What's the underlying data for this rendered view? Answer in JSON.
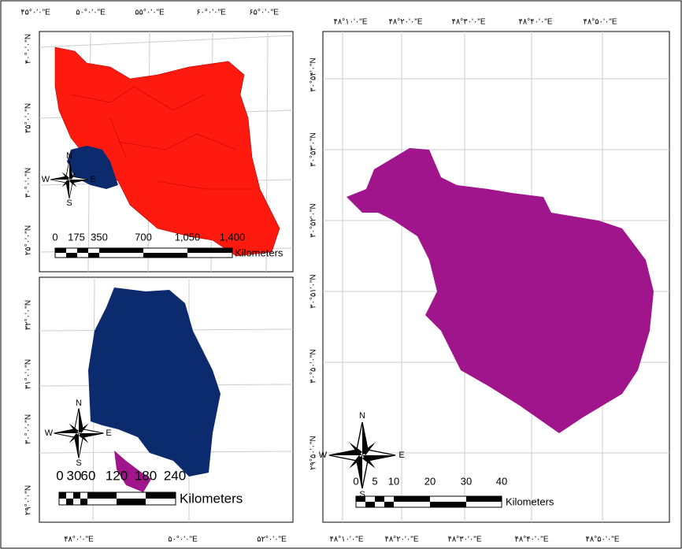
{
  "panels": {
    "iran": {
      "top_labels": [
        "۴۵°۰'۰\"E",
        "۵۰°۰'۰\"E",
        "۵۵°۰'۰\"E",
        "۶۰°۰'۰\"E",
        "۶۵°۰'۰\"E"
      ],
      "left_labels": [
        "۴۰°۰'۰\"N",
        "۳۵°۰'۰\"N",
        "۳۰°۰'۰\"N",
        "۲۵°۰'۰\"N"
      ],
      "scale": {
        "labels": [
          "0",
          "175",
          "350",
          "700",
          "1,050",
          "1,400"
        ],
        "unit": "Kilometers"
      },
      "compass": {
        "n": "N",
        "s": "S",
        "e": "E",
        "w": "W"
      }
    },
    "province": {
      "bottom_labels": [
        "۴۸°۰'۰\"E",
        "۵۰°۰'۰\"E",
        "۵۲°۰'۰\"E"
      ],
      "left_labels": [
        "۳۲°۰'۰\"N",
        "۳۱°۰'۰\"N",
        "۳۰°۰'۰\"N",
        "۲۹°۰'۰\"N"
      ],
      "scale": {
        "labels": [
          "0",
          "30",
          "60",
          "120",
          "180",
          "240"
        ],
        "unit": "Kilometers"
      },
      "compass": {
        "n": "N",
        "s": "S",
        "e": "E",
        "w": "W"
      }
    },
    "county": {
      "top_labels": [
        "۴۸°۱۰'۰\"E",
        "۴۸°۲۰'۰\"E",
        "۴۸°۳۰'۰\"E",
        "۴۸°۴۰'۰\"E",
        "۴۸°۵۰'۰\"E"
      ],
      "bottom_labels": [
        "۴۸°۱۰'۰\"E",
        "۴۸°۲۰'۰\"E",
        "۴۸°۳۰'۰\"E",
        "۴۸°۴۰'۰\"E",
        "۴۸°۵۰'۰\"E"
      ],
      "left_labels": [
        "۳۰°۵۴'۰\"N",
        "۳۰°۵۳'۰\"N",
        "۳۰°۵۲'۰\"N",
        "۳۰°۵۱'۰\"N",
        "۳۰°۵۰'۰\"N",
        "۲۹°۵۰'۰\"N"
      ],
      "scale": {
        "labels": [
          "0",
          "5",
          "10",
          "20",
          "30",
          "40"
        ],
        "unit": "Kilometers"
      },
      "compass": {
        "n": "N",
        "s": "S",
        "e": "E",
        "w": "W"
      }
    }
  }
}
